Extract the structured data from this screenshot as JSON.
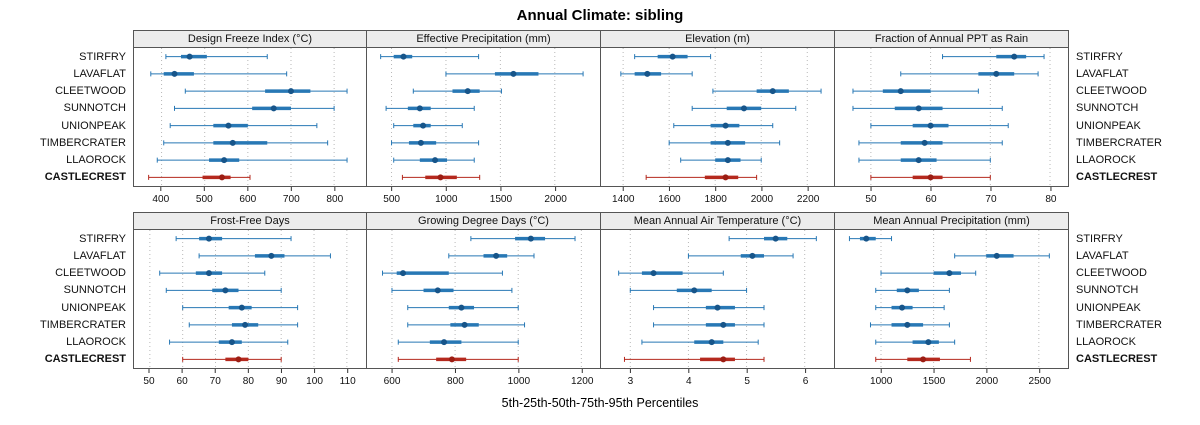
{
  "title": "Annual Climate: sibling",
  "caption": "5th-25th-50th-75th-95th Percentiles",
  "colors": {
    "series": "#2878b5",
    "series_dot": "#17558a",
    "highlight": "#b5291e",
    "highlight_dot": "#9c1d13",
    "strip_bg": "#ececec",
    "border": "#555555",
    "grid": "#b8b8b8",
    "axis_text": "#111111"
  },
  "chart_data": {
    "type": "dot-whisker",
    "percentiles": [
      5,
      25,
      50,
      75,
      95
    ],
    "sites": [
      "STIRFRY",
      "LAVAFLAT",
      "CLEETWOOD",
      "SUNNOTCH",
      "UNIONPEAK",
      "TIMBERCRATER",
      "LLAOROCK",
      "CASTLECREST"
    ],
    "highlight_site": "CASTLECREST",
    "legend_position": "none",
    "grid": "vertical-dotted",
    "panels": [
      {
        "title": "Design Freeze Index (°C)",
        "row": 0,
        "xlim": [
          350,
          860
        ],
        "ticks": [
          400,
          500,
          600,
          700,
          800
        ],
        "values": [
          [
            410,
            445,
            465,
            505,
            645
          ],
          [
            375,
            405,
            430,
            475,
            690
          ],
          [
            455,
            640,
            700,
            745,
            830
          ],
          [
            430,
            610,
            660,
            700,
            800
          ],
          [
            420,
            520,
            555,
            600,
            760
          ],
          [
            405,
            520,
            565,
            645,
            785
          ],
          [
            390,
            510,
            545,
            580,
            830
          ],
          [
            370,
            495,
            540,
            560,
            605
          ]
        ]
      },
      {
        "title": "Effective Precipitation (mm)",
        "row": 0,
        "xlim": [
          330,
          2360
        ],
        "ticks": [
          500,
          1000,
          1500,
          2000
        ],
        "values": [
          [
            400,
            520,
            610,
            690,
            1300
          ],
          [
            1000,
            1450,
            1620,
            1850,
            2260
          ],
          [
            700,
            1060,
            1200,
            1310,
            1510
          ],
          [
            450,
            650,
            760,
            860,
            1260
          ],
          [
            520,
            700,
            790,
            860,
            1150
          ],
          [
            500,
            660,
            770,
            910,
            1300
          ],
          [
            520,
            760,
            900,
            1010,
            1260
          ],
          [
            600,
            810,
            950,
            1100,
            1310
          ]
        ]
      },
      {
        "title": "Elevation (m)",
        "row": 0,
        "xlim": [
          1330,
          2290
        ],
        "ticks": [
          1400,
          1600,
          1800,
          2000,
          2200
        ],
        "values": [
          [
            1450,
            1550,
            1615,
            1680,
            1780
          ],
          [
            1390,
            1450,
            1505,
            1565,
            1700
          ],
          [
            1790,
            1980,
            2050,
            2120,
            2260
          ],
          [
            1700,
            1850,
            1925,
            2000,
            2150
          ],
          [
            1620,
            1780,
            1845,
            1905,
            2050
          ],
          [
            1600,
            1780,
            1855,
            1930,
            2080
          ],
          [
            1650,
            1800,
            1855,
            1910,
            2000
          ],
          [
            1500,
            1755,
            1845,
            1900,
            1980
          ]
        ]
      },
      {
        "title": "Fraction of Annual PPT as Rain",
        "row": 0,
        "xlim": [
          45,
          82
        ],
        "ticks": [
          50,
          60,
          70,
          80
        ],
        "values": [
          [
            62,
            71,
            74,
            76,
            79
          ],
          [
            55,
            68,
            71,
            74,
            78
          ],
          [
            47,
            52,
            55,
            60,
            68
          ],
          [
            47,
            54,
            58,
            62,
            72
          ],
          [
            50,
            57,
            60,
            63,
            73
          ],
          [
            48,
            55,
            59,
            62,
            72
          ],
          [
            48,
            55,
            58,
            61,
            70
          ],
          [
            50,
            57,
            60,
            62,
            70
          ]
        ]
      },
      {
        "title": "Frost-Free Days",
        "row": 1,
        "xlim": [
          47,
          114
        ],
        "ticks": [
          50,
          60,
          70,
          80,
          90,
          100,
          110
        ],
        "values": [
          [
            58,
            65,
            68,
            72,
            93
          ],
          [
            65,
            82,
            87,
            91,
            105
          ],
          [
            53,
            64,
            68,
            72,
            85
          ],
          [
            55,
            69,
            73,
            77,
            90
          ],
          [
            60,
            74,
            78,
            81,
            95
          ],
          [
            62,
            75,
            79,
            83,
            95
          ],
          [
            56,
            71,
            75,
            78,
            92
          ],
          [
            60,
            73,
            77,
            80,
            90
          ]
        ]
      },
      {
        "title": "Growing Degree Days (°C)",
        "row": 1,
        "xlim": [
          540,
          1240
        ],
        "ticks": [
          600,
          800,
          1000,
          1200
        ],
        "values": [
          [
            850,
            990,
            1040,
            1085,
            1180
          ],
          [
            780,
            890,
            930,
            965,
            1050
          ],
          [
            570,
            615,
            635,
            780,
            950
          ],
          [
            600,
            700,
            745,
            795,
            980
          ],
          [
            650,
            780,
            820,
            860,
            1000
          ],
          [
            650,
            785,
            830,
            875,
            1020
          ],
          [
            620,
            720,
            765,
            820,
            1000
          ],
          [
            620,
            740,
            790,
            835,
            1000
          ]
        ]
      },
      {
        "title": "Mean Annual Air Temperature (°C)",
        "row": 1,
        "xlim": [
          2.6,
          6.4
        ],
        "ticks": [
          3,
          4,
          5,
          6
        ],
        "values": [
          [
            4.7,
            5.3,
            5.5,
            5.7,
            6.2
          ],
          [
            4.0,
            4.9,
            5.1,
            5.3,
            5.8
          ],
          [
            2.8,
            3.2,
            3.4,
            3.9,
            4.6
          ],
          [
            3.0,
            3.8,
            4.1,
            4.4,
            5.0
          ],
          [
            3.4,
            4.3,
            4.5,
            4.8,
            5.3
          ],
          [
            3.4,
            4.3,
            4.6,
            4.8,
            5.3
          ],
          [
            3.2,
            4.1,
            4.4,
            4.6,
            5.2
          ],
          [
            2.9,
            4.2,
            4.6,
            4.8,
            5.3
          ]
        ]
      },
      {
        "title": "Mean Annual Precipitation (mm)",
        "row": 1,
        "xlim": [
          620,
          2720
        ],
        "ticks": [
          1000,
          1500,
          2000,
          2500
        ],
        "values": [
          [
            700,
            800,
            860,
            950,
            1100
          ],
          [
            1700,
            2000,
            2100,
            2260,
            2600
          ],
          [
            1000,
            1500,
            1650,
            1760,
            1900
          ],
          [
            950,
            1150,
            1250,
            1360,
            1650
          ],
          [
            950,
            1100,
            1200,
            1300,
            1600
          ],
          [
            900,
            1100,
            1250,
            1400,
            1650
          ],
          [
            950,
            1300,
            1450,
            1550,
            1700
          ],
          [
            950,
            1250,
            1400,
            1560,
            1850
          ]
        ]
      }
    ]
  }
}
